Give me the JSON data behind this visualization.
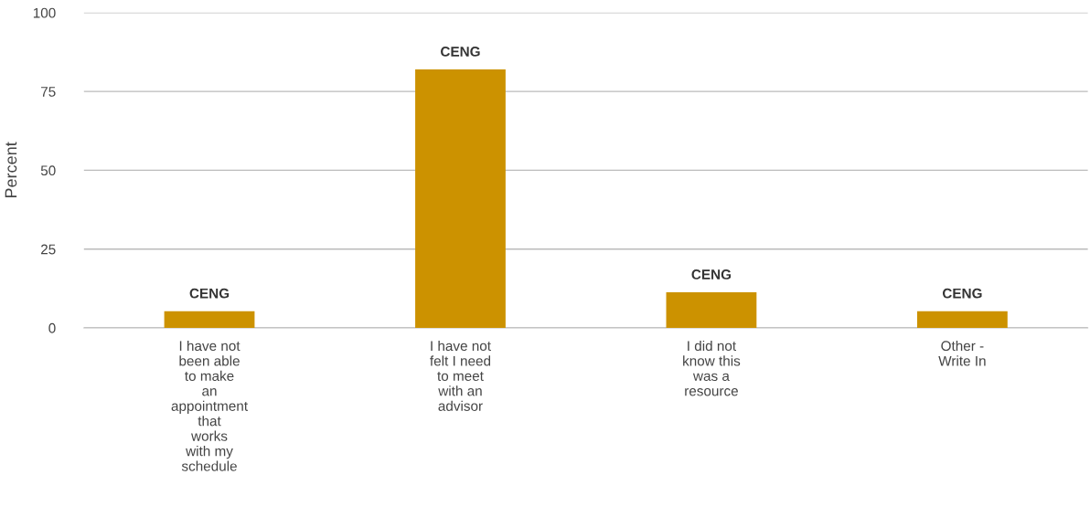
{
  "chart_data": {
    "type": "bar",
    "ylabel": "Percent",
    "categories": [
      "I have not\nbeen able\nto make\nan\nappointment\nthat\nworks\nwith my\nschedule",
      "I have not\nfelt I need\nto meet\nwith an\nadvisor",
      "I did not\nknow this\nwas a\nresource",
      "Other -\nWrite In"
    ],
    "series": [
      {
        "name": "CENG",
        "color": "#cc9200",
        "values": [
          5.3,
          82,
          11.3,
          5.3
        ]
      }
    ],
    "ylim": [
      0,
      100
    ],
    "yticks": [
      0,
      25,
      50,
      75,
      100
    ],
    "grid": "y"
  }
}
